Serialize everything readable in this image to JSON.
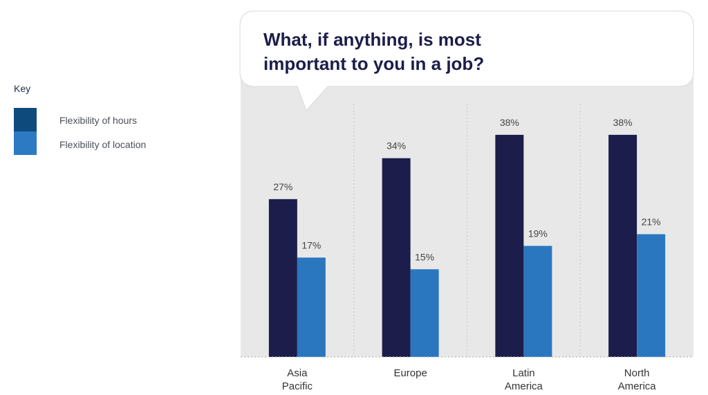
{
  "legend": {
    "title": "Key",
    "items": [
      {
        "label": "Flexibility of hours",
        "color": "#0e4a7c"
      },
      {
        "label": "Flexibility of location",
        "color": "#2c7ac4"
      }
    ]
  },
  "chart_data": {
    "type": "bar",
    "title": "What, if anything, is most important to you in a job?",
    "categories": [
      [
        "Asia",
        "Pacific"
      ],
      [
        "Europe"
      ],
      [
        "Latin",
        "America"
      ],
      [
        "North",
        "America"
      ]
    ],
    "series": [
      {
        "name": "Flexibility of hours",
        "values": [
          27,
          34,
          38,
          38
        ],
        "color": "#1c1d4a"
      },
      {
        "name": "Flexibility of location",
        "values": [
          17,
          15,
          19,
          21
        ],
        "color": "#2a77c0"
      }
    ],
    "value_suffix": "%",
    "ylim": [
      0,
      45
    ],
    "grid": false,
    "legend": "left",
    "background": "#e8e8e8"
  }
}
